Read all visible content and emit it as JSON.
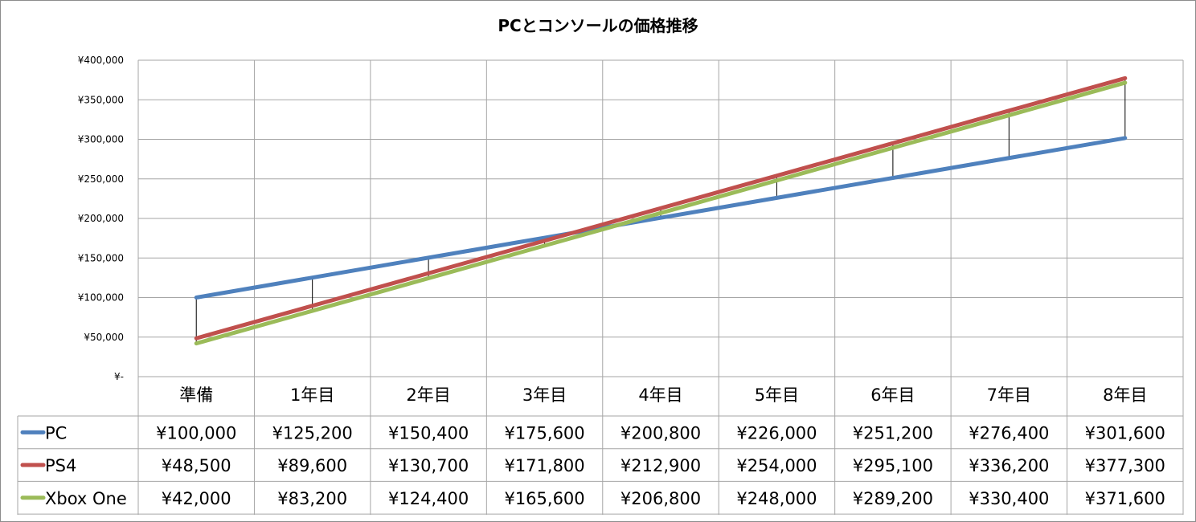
{
  "chart_data": {
    "type": "line",
    "title": "PCとコンソールの価格推移",
    "categories": [
      "準備",
      "1年目",
      "2年目",
      "3年目",
      "4年目",
      "5年目",
      "6年目",
      "7年目",
      "8年目"
    ],
    "ylim": [
      0,
      400000
    ],
    "yticks": [
      0,
      50000,
      100000,
      150000,
      200000,
      250000,
      300000,
      350000,
      400000
    ],
    "ytick_labels": [
      "¥-",
      "¥50,000",
      "¥100,000",
      "¥150,000",
      "¥200,000",
      "¥250,000",
      "¥300,000",
      "¥350,000",
      "¥400,000"
    ],
    "grid": true,
    "high_low_lines": true,
    "legend_placement": "bottom data table",
    "series": [
      {
        "name": "PC",
        "color": "#4f81bd",
        "values": [
          100000,
          125200,
          150400,
          175600,
          200800,
          226000,
          251200,
          276400,
          301600
        ],
        "labels": [
          "¥100,000",
          "¥125,200",
          "¥150,400",
          "¥175,600",
          "¥200,800",
          "¥226,000",
          "¥251,200",
          "¥276,400",
          "¥301,600"
        ]
      },
      {
        "name": "PS4",
        "color": "#c0504d",
        "values": [
          48500,
          89600,
          130700,
          171800,
          212900,
          254000,
          295100,
          336200,
          377300
        ],
        "labels": [
          "¥48,500",
          "¥89,600",
          "¥130,700",
          "¥171,800",
          "¥212,900",
          "¥254,000",
          "¥295,100",
          "¥336,200",
          "¥377,300"
        ]
      },
      {
        "name": "Xbox One",
        "color": "#9bbb59",
        "values": [
          42000,
          83200,
          124400,
          165600,
          206800,
          248000,
          289200,
          330400,
          371600
        ],
        "labels": [
          "¥42,000",
          "¥83,200",
          "¥124,400",
          "¥165,600",
          "¥206,800",
          "¥248,000",
          "¥289,200",
          "¥330,400",
          "¥371,600"
        ]
      }
    ]
  }
}
